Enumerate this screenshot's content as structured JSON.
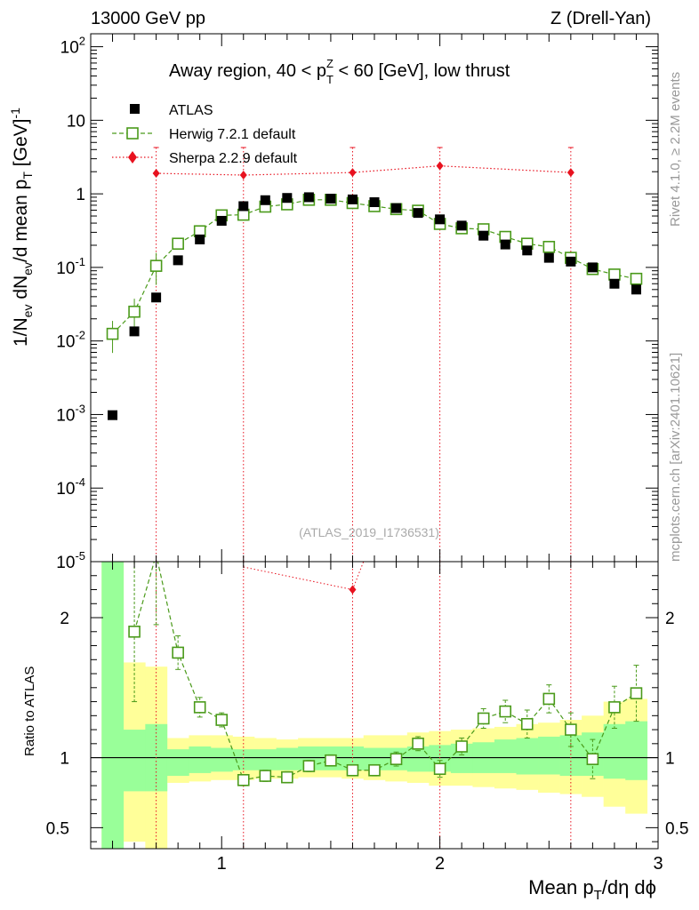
{
  "header": {
    "left": "13000 GeV pp",
    "right": "Z (Drell-Yan)"
  },
  "side_labels": {
    "rivet": "Rivet 4.1.0, ≥ 2.2M events",
    "mcplots": "mcplots.cern.ch [arXiv:2401.10621]"
  },
  "colors": {
    "atlas": "#000000",
    "herwig": "#4a9a1a",
    "sherpa": "#e8121f",
    "band_inner": "#99ff99",
    "band_outer": "#ffff99"
  },
  "chart_data": [
    {
      "type": "scatter",
      "panel": "main",
      "title": "Away region, 40 < p_T^Z < 60 [GeV], low thrust",
      "title_parts": [
        "Away region, 40 < p",
        "Z",
        "T",
        " < 60 [GeV], low thrust"
      ],
      "ylabel": "1/N_ev dN_ev/d mean p_T [GeV]^-1",
      "ylabel_parts": [
        "1/N",
        "ev",
        " dN",
        "ev",
        "/d mean p",
        "T",
        " [GeV]",
        "-1"
      ],
      "yscale": "log",
      "xlim": [
        0.4,
        3.0
      ],
      "ylim": [
        1e-05,
        150
      ],
      "yticks": [
        1e-05,
        0.0001,
        0.001,
        0.01,
        0.1,
        1,
        10,
        100
      ],
      "ytick_labels": [
        {
          "base": "10",
          "exp": "-5"
        },
        {
          "base": "10",
          "exp": "-4"
        },
        {
          "base": "10",
          "exp": "-3"
        },
        {
          "base": "10",
          "exp": "-2"
        },
        {
          "base": "10",
          "exp": "-1"
        },
        {
          "base": "1",
          "exp": ""
        },
        {
          "base": "10",
          "exp": ""
        },
        {
          "base": "10",
          "exp": "2"
        }
      ],
      "watermark": "(ATLAS_2019_I1736531)",
      "series": [
        {
          "name": "ATLAS",
          "marker": "square-filled",
          "x": [
            0.5,
            0.6,
            0.7,
            0.8,
            0.9,
            1.0,
            1.1,
            1.2,
            1.3,
            1.4,
            1.5,
            1.6,
            1.7,
            1.8,
            1.9,
            2.0,
            2.1,
            2.2,
            2.3,
            2.4,
            2.5,
            2.6,
            2.7,
            2.8,
            2.9
          ],
          "values": [
            0.00098,
            0.0135,
            0.039,
            0.125,
            0.24,
            0.43,
            0.68,
            0.82,
            0.88,
            0.9,
            0.86,
            0.84,
            0.77,
            0.64,
            0.55,
            0.45,
            0.37,
            0.27,
            0.205,
            0.17,
            0.135,
            0.12,
            0.1,
            0.06,
            0.05
          ]
        },
        {
          "name": "Herwig 7.2.1 default",
          "marker": "square-open",
          "linestyle": "dashed",
          "x": [
            0.5,
            0.6,
            0.7,
            0.8,
            0.9,
            1.0,
            1.1,
            1.2,
            1.3,
            1.4,
            1.5,
            1.6,
            1.7,
            1.8,
            1.9,
            2.0,
            2.1,
            2.2,
            2.3,
            2.4,
            2.5,
            2.6,
            2.7,
            2.8,
            2.9
          ],
          "values": [
            0.0125,
            0.025,
            0.105,
            0.21,
            0.31,
            0.51,
            0.52,
            0.67,
            0.72,
            0.83,
            0.83,
            0.75,
            0.68,
            0.62,
            0.59,
            0.39,
            0.34,
            0.33,
            0.26,
            0.21,
            0.19,
            0.135,
            0.095,
            0.08,
            0.07
          ]
        },
        {
          "name": "Sherpa 2.2.9 default",
          "marker": "diamond",
          "linestyle": "dotted",
          "x": [
            0.7,
            1.1,
            1.6,
            2.0,
            2.6
          ],
          "values": [
            1.9,
            1.8,
            1.95,
            2.4,
            1.95
          ]
        }
      ]
    },
    {
      "type": "scatter",
      "panel": "ratio",
      "ylabel": "Ratio to ATLAS",
      "xlabel": "Mean p_T/dη dφ",
      "xlabel_parts": [
        "Mean p",
        "T",
        "/dη dϕ"
      ],
      "xlim": [
        0.4,
        3.0
      ],
      "ylim": [
        0.35,
        2.4
      ],
      "xticks": [
        1,
        2,
        3
      ],
      "xtick_labels": [
        "1",
        "2",
        "3"
      ],
      "yticks": [
        0.5,
        1,
        2
      ],
      "ytick_labels": [
        "0.5",
        "1",
        "2"
      ],
      "band_bins": [
        0.45,
        0.55,
        0.65,
        0.75,
        0.85,
        0.95,
        1.05,
        1.15,
        1.25,
        1.35,
        1.45,
        1.55,
        1.65,
        1.75,
        1.85,
        1.95,
        2.05,
        2.15,
        2.25,
        2.35,
        2.45,
        2.55,
        2.65,
        2.75,
        2.85,
        2.95
      ],
      "band_inner": [
        [
          0.35,
          2.4
        ],
        [
          0.76,
          1.2
        ],
        [
          0.76,
          1.24
        ],
        [
          0.87,
          1.06
        ],
        [
          0.89,
          1.08
        ],
        [
          0.9,
          1.07
        ],
        [
          0.91,
          1.06
        ],
        [
          0.91,
          1.06
        ],
        [
          0.91,
          1.07
        ],
        [
          0.91,
          1.08
        ],
        [
          0.91,
          1.08
        ],
        [
          0.91,
          1.08
        ],
        [
          0.91,
          1.07
        ],
        [
          0.91,
          1.07
        ],
        [
          0.9,
          1.08
        ],
        [
          0.9,
          1.09
        ],
        [
          0.89,
          1.1
        ],
        [
          0.89,
          1.11
        ],
        [
          0.89,
          1.13
        ],
        [
          0.88,
          1.14
        ],
        [
          0.88,
          1.15
        ],
        [
          0.87,
          1.16
        ],
        [
          0.87,
          1.18
        ],
        [
          0.85,
          1.24
        ],
        [
          0.84,
          1.26
        ]
      ],
      "band_outer": [
        [
          0.35,
          2.4
        ],
        [
          0.4,
          1.68
        ],
        [
          0.35,
          1.65
        ],
        [
          0.82,
          1.14
        ],
        [
          0.83,
          1.16
        ],
        [
          0.84,
          1.16
        ],
        [
          0.84,
          1.15
        ],
        [
          0.85,
          1.14
        ],
        [
          0.85,
          1.13
        ],
        [
          0.86,
          1.14
        ],
        [
          0.86,
          1.14
        ],
        [
          0.85,
          1.14
        ],
        [
          0.84,
          1.16
        ],
        [
          0.83,
          1.16
        ],
        [
          0.82,
          1.18
        ],
        [
          0.8,
          1.19
        ],
        [
          0.8,
          1.2
        ],
        [
          0.79,
          1.21
        ],
        [
          0.78,
          1.22
        ],
        [
          0.77,
          1.24
        ],
        [
          0.75,
          1.25
        ],
        [
          0.74,
          1.27
        ],
        [
          0.72,
          1.3
        ],
        [
          0.65,
          1.4
        ],
        [
          0.6,
          1.42
        ]
      ],
      "reference": 1,
      "series": [
        {
          "name": "Herwig 7.2.1 default",
          "x": [
            0.6,
            0.7,
            0.8,
            0.9,
            1.0,
            1.1,
            1.2,
            1.3,
            1.4,
            1.5,
            1.6,
            1.7,
            1.8,
            1.9,
            2.0,
            2.1,
            2.2,
            2.3,
            2.4,
            2.5,
            2.6,
            2.7,
            2.8,
            2.9
          ],
          "values": [
            1.9,
            2.45,
            1.75,
            1.36,
            1.27,
            0.84,
            0.87,
            0.86,
            0.94,
            0.98,
            0.91,
            0.91,
            0.99,
            1.1,
            0.92,
            1.08,
            1.28,
            1.33,
            1.24,
            1.42,
            1.2,
            0.99,
            1.36,
            1.46
          ],
          "err": [
            0.5,
            0.5,
            0.12,
            0.07,
            0.05,
            0.04,
            0.04,
            0.04,
            0.04,
            0.04,
            0.04,
            0.04,
            0.05,
            0.05,
            0.06,
            0.06,
            0.07,
            0.08,
            0.1,
            0.1,
            0.12,
            0.14,
            0.15,
            0.2
          ]
        },
        {
          "name": "Sherpa 2.2.9 default",
          "x": [
            1.6
          ],
          "values": [
            2.2
          ]
        }
      ]
    }
  ]
}
